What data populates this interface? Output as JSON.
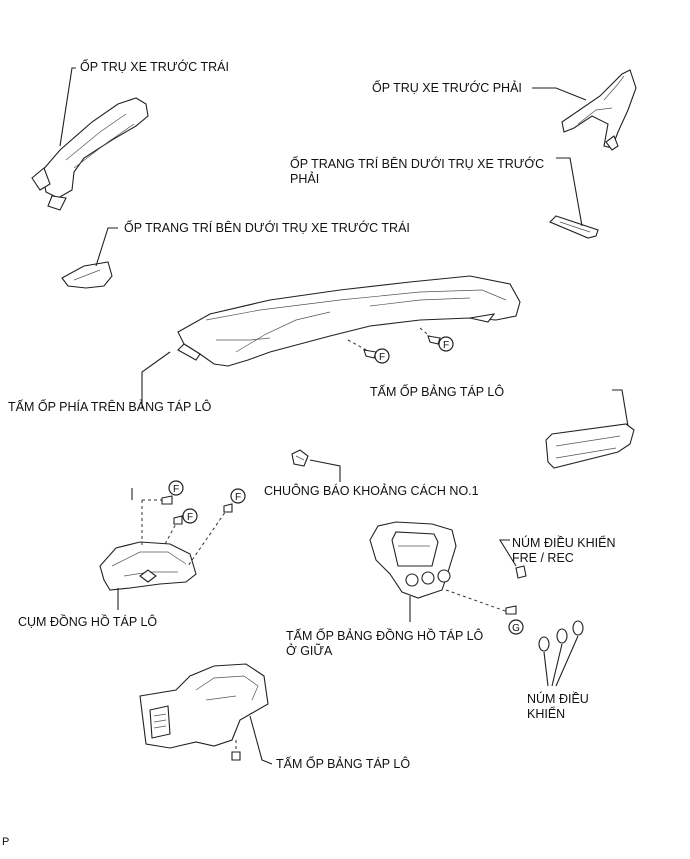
{
  "labels": {
    "front_pillar_left": "ỐP TRỤ XE TRƯỚC TRÁI",
    "front_pillar_right": "ỐP TRỤ XE TRƯỚC PHẢI",
    "lower_pillar_trim_right": "ỐP TRANG TRÍ BÊN DƯỚI TRỤ XE TRƯỚC PHẢI",
    "lower_pillar_trim_left": "ỐP TRANG TRÍ BÊN DƯỚI TRỤ XE TRƯỚC TRÁI",
    "upper_dash_panel": "TẤM ỐP PHÍA TRÊN BẢNG TÁP LÔ",
    "dash_panel_right": "TẤM ỐP BẢNG TÁP LÔ",
    "clearance_buzzer": "CHUÔNG BÁO KHOẢNG CÁCH NO.1",
    "fre_rec_knob": "NÚM ĐIỀU KHIỂN FRE / REC",
    "combination_meter": "CỤM ĐỒNG HỒ TÁP LÔ",
    "center_cluster_panel": "TẤM ỐP BẢNG ĐỒNG HỒ TÁP LÔ Ở GIỮA",
    "control_knobs": "NÚM ĐIỀU KHIỂN",
    "dash_panel_lower": "TẤM ỐP BẢNG TÁP LÔ"
  },
  "fastener_letters": {
    "f": "F",
    "g": "G"
  },
  "page_code": "P"
}
